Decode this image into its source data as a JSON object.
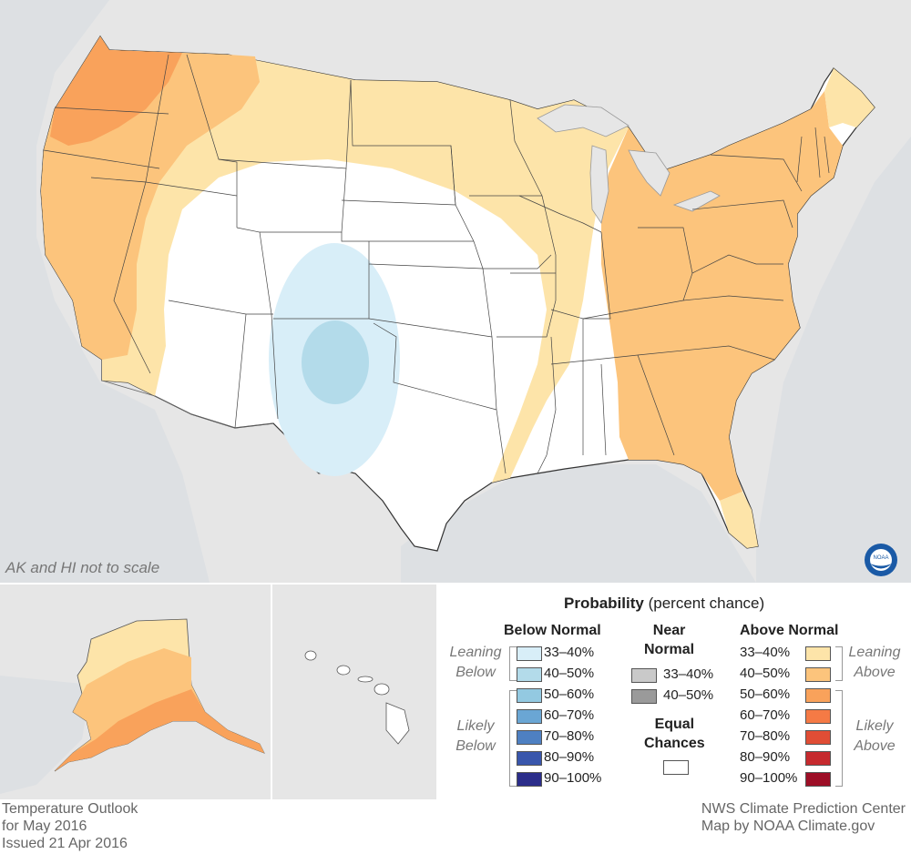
{
  "map": {
    "note": "AK and HI not to scale",
    "colors": {
      "background_land": "#e6e6e6",
      "ocean": "#d9dde0",
      "equal_chances": "#ffffff",
      "above_33_40": "#fde4a9",
      "above_40_50": "#fcc47c",
      "above_50_60": "#f9a25b",
      "below_33_40": "#d8eef8",
      "below_40_50": "#b3dbea"
    },
    "logo": "noaa-logo"
  },
  "legend": {
    "title_bold": "Probability",
    "title_rest": "(percent chance)",
    "below": {
      "heading": "Below Normal",
      "leaning_label": [
        "Leaning",
        "Below"
      ],
      "likely_label": [
        "Likely",
        "Below"
      ],
      "items": [
        {
          "label": "33–40%",
          "color": "#d8eef8"
        },
        {
          "label": "40–50%",
          "color": "#b3dbea"
        },
        {
          "label": "50–60%",
          "color": "#93c9e1"
        },
        {
          "label": "60–70%",
          "color": "#6aa6d4"
        },
        {
          "label": "70–80%",
          "color": "#4e80c2"
        },
        {
          "label": "80–90%",
          "color": "#3956ac"
        },
        {
          "label": "90–100%",
          "color": "#2b2d8a"
        }
      ]
    },
    "near": {
      "heading": [
        "Near",
        "Normal"
      ],
      "items": [
        {
          "label": "33–40%",
          "color": "#c9c9c9"
        },
        {
          "label": "40–50%",
          "color": "#9a9a9a"
        }
      ],
      "equal_heading": [
        "Equal",
        "Chances"
      ],
      "equal_color": "#ffffff"
    },
    "above": {
      "heading": "Above Normal",
      "leaning_label": [
        "Leaning",
        "Above"
      ],
      "likely_label": [
        "Likely",
        "Above"
      ],
      "items": [
        {
          "label": "33–40%",
          "color": "#fde4a9"
        },
        {
          "label": "40–50%",
          "color": "#fcc47c"
        },
        {
          "label": "50–60%",
          "color": "#f9a25b"
        },
        {
          "label": "60–70%",
          "color": "#f57a45"
        },
        {
          "label": "70–80%",
          "color": "#e04d35"
        },
        {
          "label": "80–90%",
          "color": "#c62a2e"
        },
        {
          "label": "90–100%",
          "color": "#9d0e26"
        }
      ]
    }
  },
  "footer": {
    "left": [
      "Temperature Outlook",
      "for May 2016",
      "Issued 21 Apr 2016"
    ],
    "right": [
      "NWS Climate Prediction Center",
      "Map by NOAA Climate.gov"
    ]
  }
}
